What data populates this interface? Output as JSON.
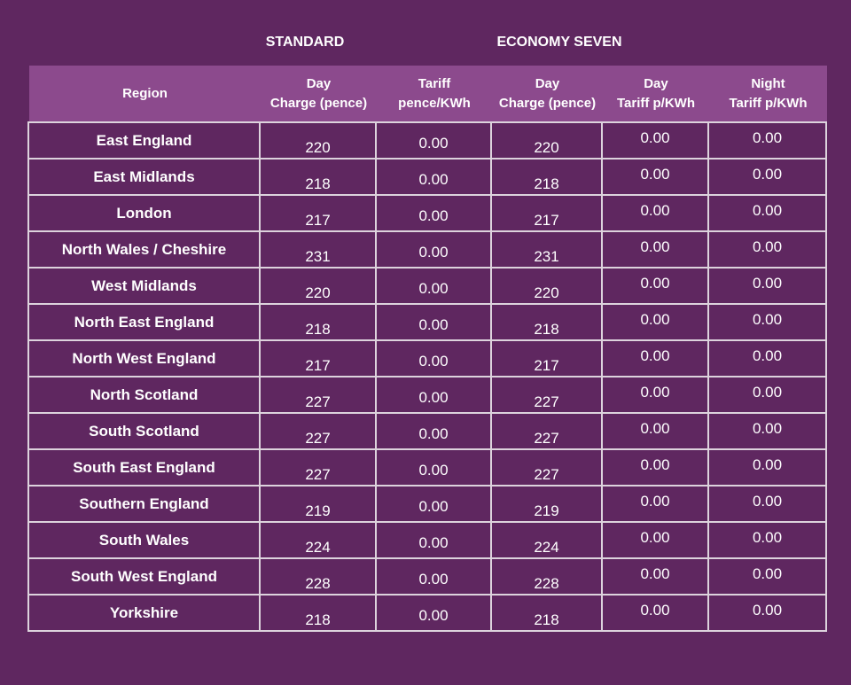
{
  "groups": [
    "STANDARD",
    "ECONOMY SEVEN"
  ],
  "table": {
    "headers": [
      "Region",
      "Day\nCharge (pence)",
      "Tariff\npence/KWh",
      "Day\nCharge (pence)",
      "Day\nTariff p/KWh",
      "Night\nTariff p/KWh"
    ],
    "rows": [
      [
        "East England",
        "220",
        "0.00",
        "220",
        "0.00",
        "0.00"
      ],
      [
        "East Midlands",
        "218",
        "0.00",
        "218",
        "0.00",
        "0.00"
      ],
      [
        "London",
        "217",
        "0.00",
        "217",
        "0.00",
        "0.00"
      ],
      [
        "North Wales / Cheshire",
        "231",
        "0.00",
        "231",
        "0.00",
        "0.00"
      ],
      [
        "West Midlands",
        "220",
        "0.00",
        "220",
        "0.00",
        "0.00"
      ],
      [
        "North East England",
        "218",
        "0.00",
        "218",
        "0.00",
        "0.00"
      ],
      [
        "North West England",
        "217",
        "0.00",
        "217",
        "0.00",
        "0.00"
      ],
      [
        "North Scotland",
        "227",
        "0.00",
        "227",
        "0.00",
        "0.00"
      ],
      [
        "South Scotland",
        "227",
        "0.00",
        "227",
        "0.00",
        "0.00"
      ],
      [
        "South East England",
        "227",
        "0.00",
        "227",
        "0.00",
        "0.00"
      ],
      [
        "Southern England",
        "219",
        "0.00",
        "219",
        "0.00",
        "0.00"
      ],
      [
        "South Wales",
        "224",
        "0.00",
        "224",
        "0.00",
        "0.00"
      ],
      [
        "South West England",
        "228",
        "0.00",
        "228",
        "0.00",
        "0.00"
      ],
      [
        "Yorkshire",
        "218",
        "0.00",
        "218",
        "0.00",
        "0.00"
      ]
    ]
  }
}
